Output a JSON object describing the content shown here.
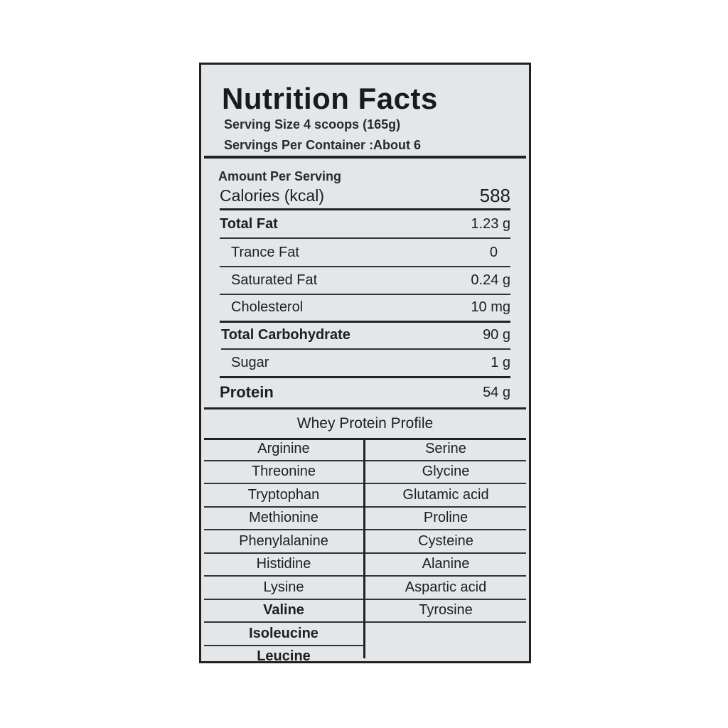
{
  "title": "Nutrition Facts",
  "serving_size": "Serving Size  4 scoops (165g)",
  "servings_per_container": "Servings Per Container :About 6",
  "amount_per_serving": "Amount Per Serving",
  "calories": {
    "label": "Calories (kcal)",
    "value": "588"
  },
  "nutrients": [
    {
      "label": "Total Fat",
      "value": "1.23 g"
    },
    {
      "label": "Trance Fat",
      "value": "0"
    },
    {
      "label": "Saturated Fat",
      "value": "0.24 g"
    },
    {
      "label": "Cholesterol",
      "value": "10 mg"
    },
    {
      "label": "Total Carbohydrate",
      "value": "90  g"
    },
    {
      "label": "Sugar",
      "value": "1 g"
    },
    {
      "label": "Protein",
      "value": "54 g"
    }
  ],
  "profile_title": "Whey Protein Profile",
  "profile_left": [
    "Arginine",
    "Threonine",
    "Tryptophan",
    "Methionine",
    "Phenylalanine",
    "Histidine",
    "Lysine",
    "Valine",
    "Isoleucine",
    "Leucine"
  ],
  "profile_right": [
    "Serine",
    "Glycine",
    "Glutamic acid",
    "Proline",
    "Cysteine",
    "Alanine",
    "Aspartic acid",
    "Tyrosine"
  ]
}
